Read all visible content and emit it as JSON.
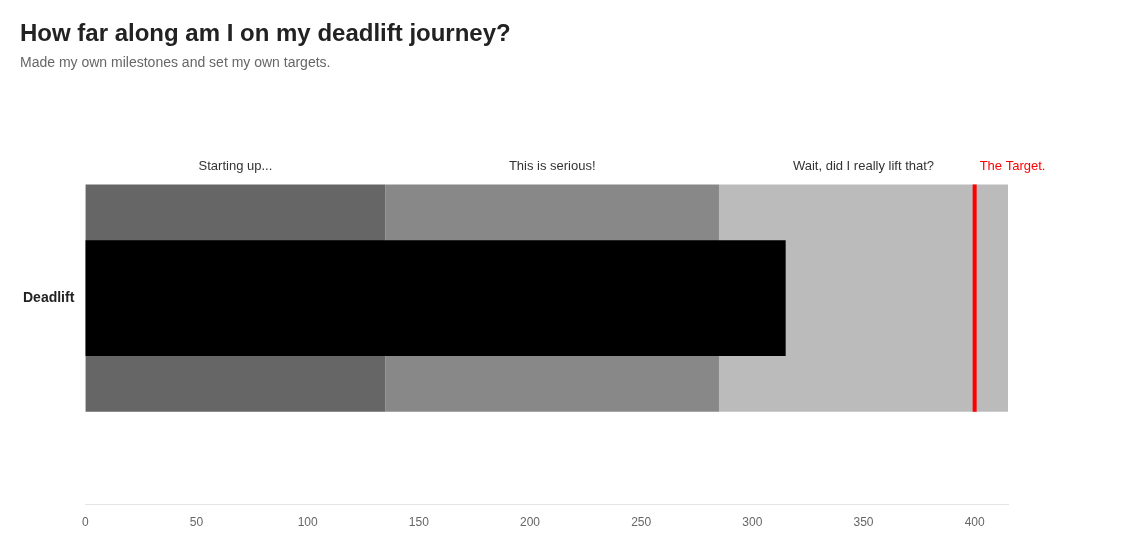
{
  "chart_data": {
    "type": "bullet",
    "orientation": "horizontal",
    "title": "How far along am I on my deadlift journey?",
    "subtitle": "Made my own milestones and set my own targets.",
    "categories": [
      "Deadlift"
    ],
    "values": [
      315
    ],
    "color": "#000000",
    "bands": [
      {
        "label": "Starting up...",
        "from": 0,
        "to": 135,
        "color": "#666666"
      },
      {
        "label": "This is serious!",
        "from": 135,
        "to": 285,
        "color": "#888888"
      },
      {
        "label": "Wait, did I really lift that?",
        "from": 285,
        "to": 415,
        "color": "#bbbbbb"
      }
    ],
    "target": {
      "value": 400,
      "label": "The Target.",
      "color": "#ff0000"
    },
    "xlim": [
      0,
      415
    ],
    "xticks": [
      0,
      50,
      100,
      150,
      200,
      250,
      300,
      350,
      400
    ],
    "grid": false
  }
}
